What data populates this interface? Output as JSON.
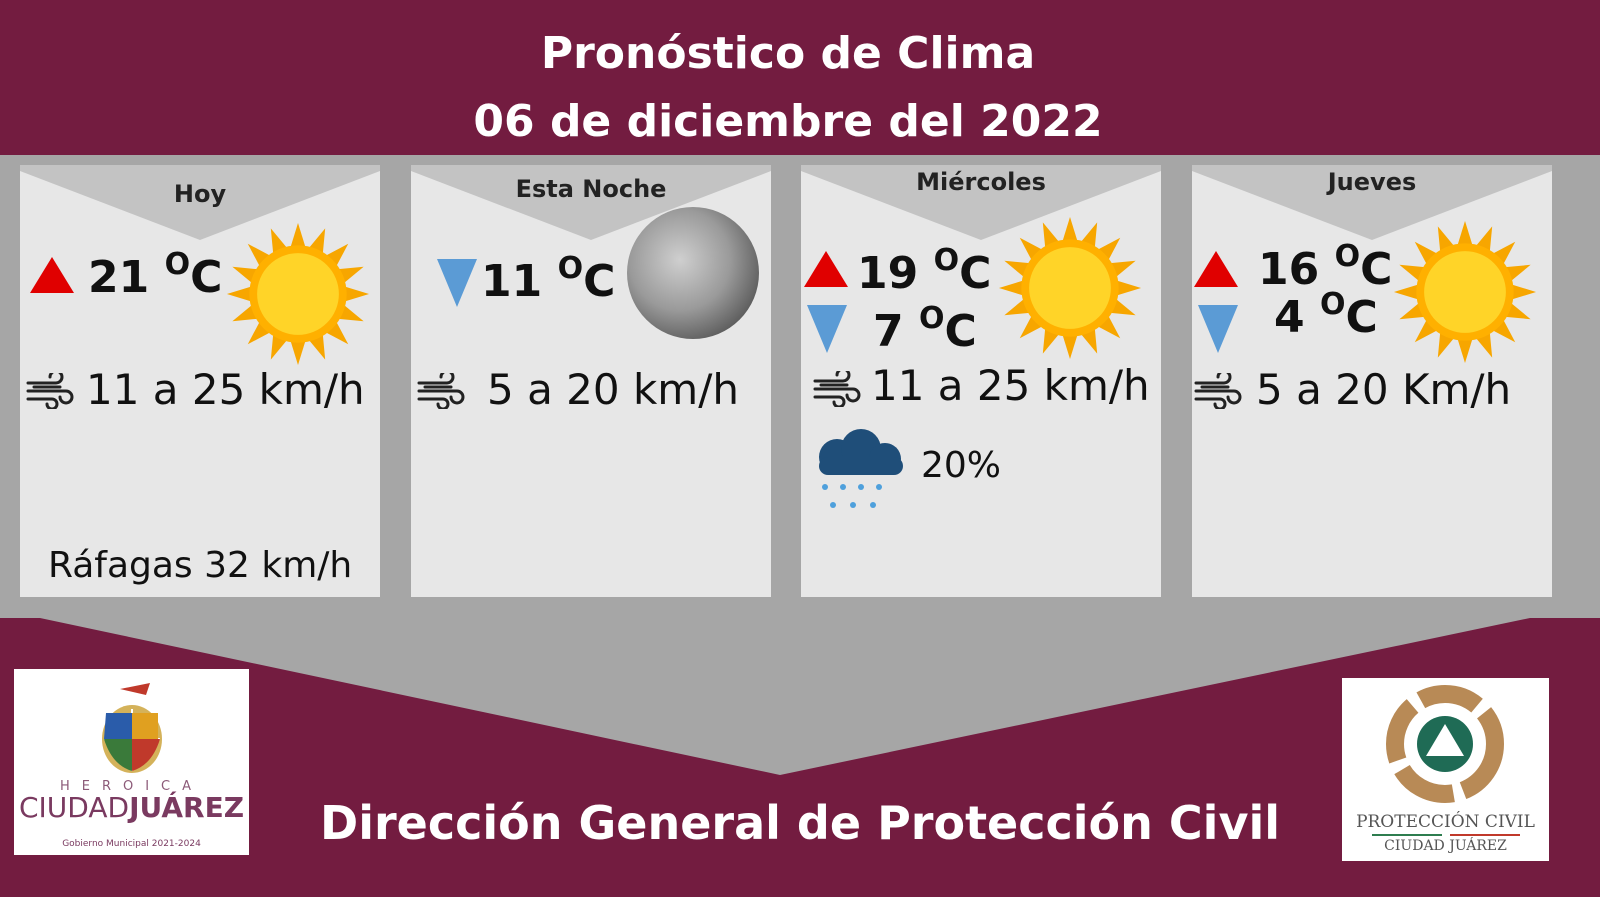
{
  "header": {
    "title": "Pronóstico de Clima",
    "date": "06 de diciembre del 2022"
  },
  "colors": {
    "background": "#731c40",
    "band": "#a6a6a6",
    "card": "#e7e7e7",
    "up_arrow": "#e00000",
    "down_arrow": "#5b9bd5",
    "sun": "#ffc000"
  },
  "cards": [
    {
      "day": "Hoy",
      "high": "21",
      "unit": "C",
      "deg": "O",
      "wind": "11 a 25 km/h",
      "gusts": "Ráfagas 32  km/h",
      "icon": "sun-icon"
    },
    {
      "day": "Esta Noche",
      "low": "11",
      "unit": "C",
      "deg": "O",
      "wind": "5 a 20  km/h",
      "icon": "moon-icon"
    },
    {
      "day": "Miércoles",
      "high": "19",
      "low": "7",
      "unit": "C",
      "deg": "O",
      "wind": "11 a 25 km/h",
      "rain": "20%",
      "icon": "sun-icon"
    },
    {
      "day": "Jueves",
      "high": "16",
      "low": "4",
      "unit": "C",
      "deg": "O",
      "wind": "5 a 20 Km/h",
      "icon": "sun-icon"
    }
  ],
  "logos": {
    "left": {
      "top": "HEROICA",
      "main1": "CIUDAD",
      "main2": "JUÁREZ",
      "sub": "Gobierno Municipal 2021-2024"
    },
    "right": {
      "line1": "PROTECCIÓN CIVIL",
      "line2": "CIUDAD JUÁREZ"
    }
  },
  "footer": "Dirección General de Protección Civil"
}
